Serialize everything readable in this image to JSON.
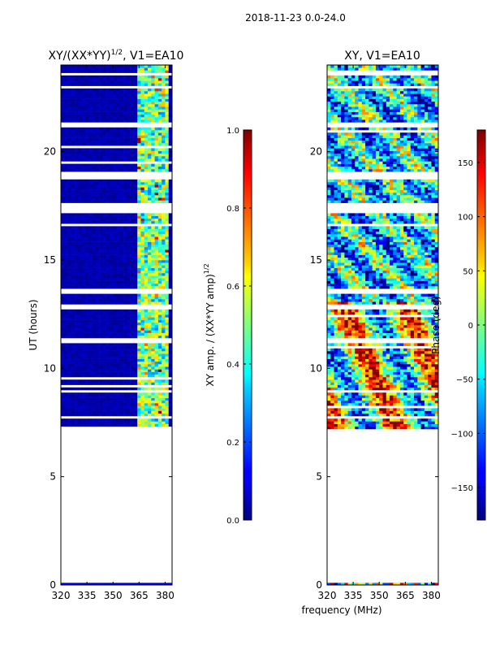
{
  "figure": {
    "suptitle": "2018-11-23 0.0-24.0",
    "common_xlabel": "frequency (MHz)"
  },
  "chart_data": [
    {
      "type": "heatmap",
      "title": "XY/(XX*YY)1/2, V1=EA10",
      "title_main": "XY/(XX*YY)",
      "title_sup": "1/2",
      "title_rest": ", V1=EA10",
      "ylabel": "UT (hours)",
      "xlim": [
        320,
        384
      ],
      "ylim": [
        0,
        24
      ],
      "xticks": [
        320,
        335,
        350,
        365,
        380
      ],
      "yticks": [
        0,
        5,
        10,
        15,
        20
      ],
      "data_start_hour": 7.2,
      "colorbar": {
        "label": "XY amp. / (XX*YY amp)1/2",
        "label_main": "XY amp. / (XX*YY amp)",
        "label_sup": "1/2",
        "range": [
          0.0,
          1.0
        ],
        "ticks": [
          "0.0",
          "0.2",
          "0.4",
          "0.6",
          "0.8",
          "1.0"
        ],
        "colormap": "jet"
      }
    },
    {
      "type": "heatmap",
      "title": "XY, V1=EA10",
      "ylabel": "",
      "xlim": [
        320,
        384
      ],
      "ylim": [
        0,
        24
      ],
      "xticks": [
        320,
        335,
        350,
        365,
        380
      ],
      "yticks": [
        0,
        5,
        10,
        15,
        20
      ],
      "data_start_hour": 7.2,
      "colorbar": {
        "label": "Phase (deg)",
        "range": [
          -180,
          180
        ],
        "ticks": [
          "−150",
          "−100",
          "−50",
          "0",
          "50",
          "100",
          "150"
        ],
        "colormap": "jet"
      }
    }
  ],
  "colors": {
    "jet_dark_blue": "#00007f",
    "blue": "#0000ff",
    "cyan": "#00ffff",
    "yellow": "#ffff00",
    "red": "#ff0000",
    "dark_red": "#7f0000"
  }
}
